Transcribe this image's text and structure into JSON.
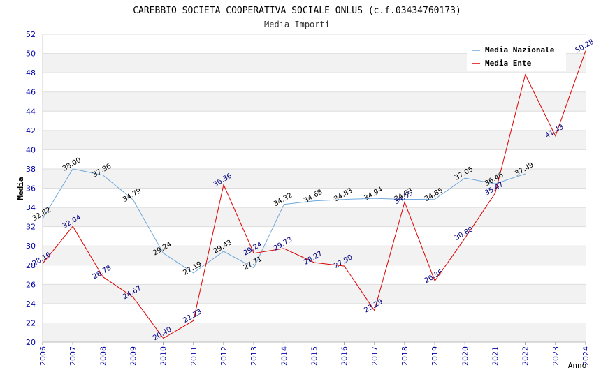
{
  "chart_data": {
    "type": "line",
    "title": "CAREBBIO SOCIETA COOPERATIVA SOCIALE ONLUS (c.f.03434760173)",
    "subtitle": "Media Importi",
    "xlabel": "Anno",
    "ylabel": "Media",
    "ylim": [
      20,
      52
    ],
    "y_ticks": [
      20,
      22,
      24,
      26,
      28,
      30,
      32,
      34,
      36,
      38,
      40,
      42,
      44,
      46,
      48,
      50,
      52
    ],
    "x": [
      "2006",
      "2007",
      "2008",
      "2009",
      "2010",
      "2011",
      "2012",
      "2013",
      "2014",
      "2015",
      "2016",
      "2017",
      "2018",
      "2019",
      "2020",
      "2021",
      "2022",
      "2023",
      "2024"
    ],
    "grid": true,
    "legend_position": "top-right",
    "series": [
      {
        "name": "Media Nazionale",
        "color": "#6fa8dc",
        "label_color": "#000000",
        "values": [
          32.82,
          38.0,
          37.36,
          34.79,
          29.24,
          27.19,
          29.43,
          27.71,
          34.32,
          34.68,
          34.83,
          34.94,
          34.83,
          34.85,
          37.05,
          36.46,
          37.49,
          null,
          null
        ],
        "labels": [
          "32.82",
          "38.00",
          "37.36",
          "34.79",
          "29.24",
          "27.19",
          "29.43",
          "27.71",
          "34.32",
          "34.68",
          "34.83",
          "34.94",
          "34.83",
          "34.85",
          "37.05",
          "36.46",
          "37.49",
          "",
          ""
        ]
      },
      {
        "name": "Media Ente",
        "color": "#e00000",
        "label_color": "#000080",
        "values": [
          28.16,
          32.04,
          26.78,
          24.67,
          20.4,
          22.23,
          36.36,
          29.24,
          29.73,
          28.27,
          27.9,
          23.29,
          34.55,
          26.36,
          30.8,
          35.47,
          47.8,
          41.43,
          50.28
        ],
        "labels": [
          "28.16",
          "32.04",
          "26.78",
          "24.67",
          "20.40",
          "22.23",
          "36.36",
          "29.24",
          "29.73",
          "28.27",
          "27.90",
          "23.29",
          "34.55",
          "26.36",
          "30.80",
          "35.47",
          "",
          "41.43",
          "50.28"
        ]
      }
    ]
  }
}
